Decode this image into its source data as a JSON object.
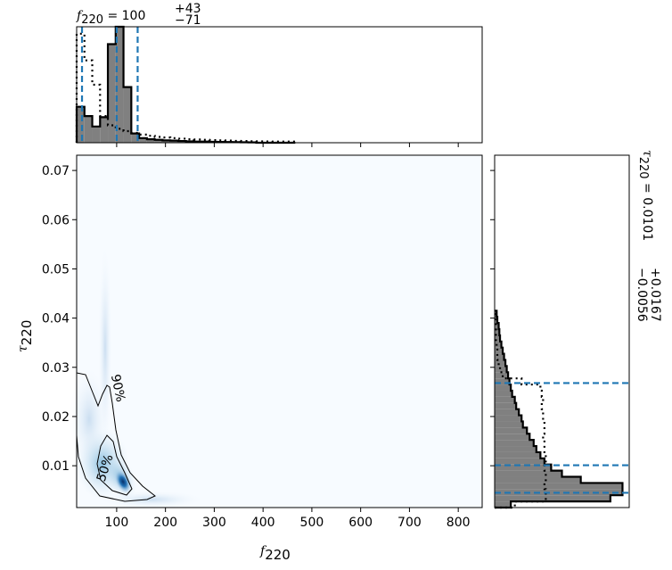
{
  "chart_data": [
    {
      "type": "density",
      "xlabel": {
        "symbol": "f",
        "sub": "220"
      },
      "ylabel": {
        "symbol": "τ",
        "sub": "220"
      },
      "xlim": [
        18,
        849
      ],
      "xticks": [
        100,
        200,
        300,
        400,
        500,
        600,
        700,
        800
      ],
      "ylim": [
        0.0015,
        0.0731
      ],
      "yticks": [
        0.01,
        0.02,
        0.03,
        0.04,
        0.05,
        0.06,
        0.07
      ],
      "contour_labels": [
        "90%",
        "50%"
      ],
      "color": "#08519c"
    },
    {
      "type": "histogram",
      "orientation": "vertical",
      "title": {
        "symbol": "f",
        "sub": "220",
        "eq": " = 100",
        "sup": "+43",
        "low": "−71"
      },
      "bins": [
        18,
        34,
        50,
        66,
        82,
        98,
        114,
        130,
        146,
        162,
        178,
        194,
        210,
        226,
        242,
        258,
        274,
        290,
        306,
        322,
        338,
        354,
        370,
        386,
        402,
        418,
        434,
        450,
        466
      ],
      "ylim": [
        0,
        1
      ],
      "series": [
        {
          "style": "filled",
          "color": "#808080",
          "values": [
            0.31,
            0.23,
            0.14,
            0.22,
            0.85,
            1.0,
            0.48,
            0.08,
            0.04,
            0.03,
            0.025,
            0.02,
            0.018,
            0.015,
            0.012,
            0.01,
            0.01,
            0.008,
            0.007,
            0.006,
            0.005,
            0.004,
            0.003,
            0,
            0,
            0,
            0,
            0
          ]
        },
        {
          "style": "dotted",
          "color": "#000000",
          "values": [
            0.94,
            0.71,
            0.5,
            0.23,
            0.15,
            0.12,
            0.1,
            0.085,
            0.07,
            0.06,
            0.05,
            0.045,
            0.04,
            0.035,
            0.03,
            0.028,
            0.025,
            0.022,
            0.02,
            0.018,
            0.016,
            0.015,
            0.013,
            0.012,
            0.011,
            0.01,
            0.01,
            0.01
          ]
        }
      ],
      "quantiles": [
        29,
        100,
        143
      ],
      "quantile_color": "#1f77b4"
    },
    {
      "type": "histogram",
      "orientation": "horizontal",
      "title": {
        "symbol": "τ",
        "sub": "220",
        "eq": " = 0.0101",
        "sup": "+0.0167",
        "low": "−0.0056"
      },
      "bins": [
        0.0015,
        0.00275,
        0.004,
        0.00525,
        0.0065,
        0.00775,
        0.009,
        0.01025,
        0.0115,
        0.01275,
        0.014,
        0.01525,
        0.0165,
        0.01775,
        0.019,
        0.02025,
        0.0215,
        0.02275,
        0.024,
        0.02525,
        0.0265,
        0.02775,
        0.029,
        0.03025,
        0.0315,
        0.03275,
        0.034,
        0.03525,
        0.0365,
        0.03775,
        0.039,
        0.04025,
        0.0415
      ],
      "xlim": [
        0,
        1
      ],
      "series": [
        {
          "style": "filled",
          "color": "#808080",
          "values": [
            0.12,
            0.86,
            0.95,
            0.95,
            0.64,
            0.5,
            0.42,
            0.37,
            0.34,
            0.31,
            0.29,
            0.26,
            0.24,
            0.21,
            0.2,
            0.18,
            0.16,
            0.15,
            0.13,
            0.12,
            0.11,
            0.1,
            0.09,
            0.08,
            0.07,
            0.06,
            0.05,
            0.04,
            0.035,
            0.03,
            0.02,
            0.015
          ]
        },
        {
          "style": "dotted",
          "color": "#000000",
          "values": [
            0.15,
            0.38,
            0.38,
            0.37,
            0.38,
            0.38,
            0.37,
            0.38,
            0.38,
            0.37,
            0.37,
            0.36,
            0.37,
            0.37,
            0.36,
            0.36,
            0.35,
            0.36,
            0.35,
            0.34,
            0.2,
            0.06,
            0.04,
            0.03,
            0.02,
            0.02,
            0.015,
            0.01,
            0.01,
            0.01,
            0.005,
            0.005
          ]
        }
      ],
      "quantiles": [
        0.0045,
        0.0101,
        0.0268
      ],
      "quantile_color": "#1f77b4"
    }
  ]
}
